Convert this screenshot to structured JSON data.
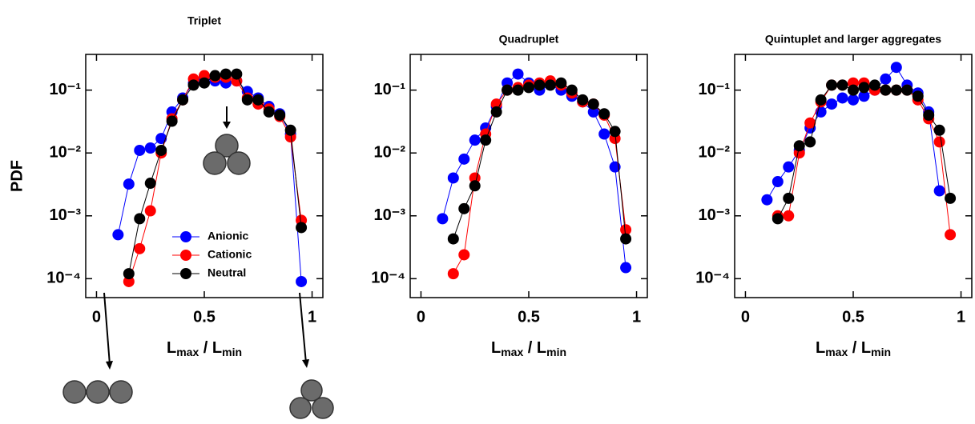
{
  "chart_data": [
    {
      "type": "line",
      "title": "Triplet",
      "ylabel": "PDF",
      "xlabel": [
        "L",
        "max",
        " / ",
        "L",
        "min"
      ],
      "x": [
        0.1,
        0.15,
        0.2,
        0.25,
        0.3,
        0.35,
        0.4,
        0.45,
        0.5,
        0.55,
        0.6,
        0.65,
        0.7,
        0.75,
        0.8,
        0.85,
        0.9,
        0.95
      ],
      "series": [
        {
          "name": "Anionic",
          "color": "#0000ff",
          "values": [
            0.0005,
            0.0032,
            0.011,
            0.012,
            0.017,
            0.045,
            0.075,
            0.13,
            0.16,
            0.14,
            0.13,
            0.14,
            0.095,
            0.075,
            0.055,
            0.042,
            0.02,
            9e-05
          ]
        },
        {
          "name": "Cationic",
          "color": "#ff0000",
          "values": [
            null,
            9e-05,
            0.0003,
            0.0012,
            0.01,
            0.035,
            0.07,
            0.15,
            0.17,
            0.16,
            0.16,
            0.14,
            0.075,
            0.06,
            0.05,
            0.038,
            0.018,
            0.00085
          ]
        },
        {
          "name": "Neutral",
          "color": "#000000",
          "values": [
            null,
            0.00012,
            0.0009,
            0.0033,
            0.011,
            0.032,
            0.07,
            0.12,
            0.13,
            0.17,
            0.18,
            0.18,
            0.07,
            0.07,
            0.045,
            0.04,
            0.023,
            0.00065
          ]
        }
      ],
      "xlim": [
        -0.05,
        1.05
      ],
      "xticks": [
        0,
        0.5,
        1
      ],
      "ylim": [
        5e-05,
        0.37
      ],
      "log_y": true,
      "yticks": [
        {
          "value": 0.1,
          "label": "10⁻¹"
        },
        {
          "value": 0.01,
          "label": "10⁻²"
        },
        {
          "value": 0.001,
          "label": "10⁻³"
        },
        {
          "value": 0.0001,
          "label": "10⁻⁴"
        }
      ],
      "legend": "lower center"
    },
    {
      "type": "line",
      "title": "Quadruplet",
      "xlabel": [
        "L",
        "max",
        " / ",
        "L",
        "min"
      ],
      "x": [
        0.1,
        0.15,
        0.2,
        0.25,
        0.3,
        0.35,
        0.4,
        0.45,
        0.5,
        0.55,
        0.6,
        0.65,
        0.7,
        0.75,
        0.8,
        0.85,
        0.9,
        0.95
      ],
      "series": [
        {
          "name": "Anionic",
          "color": "#0000ff",
          "values": [
            0.0009,
            0.004,
            0.008,
            0.016,
            0.025,
            0.055,
            0.13,
            0.18,
            0.13,
            0.1,
            0.12,
            0.1,
            0.08,
            0.065,
            0.045,
            0.02,
            0.006,
            0.00015
          ]
        },
        {
          "name": "Cationic",
          "color": "#ff0000",
          "values": [
            null,
            0.00012,
            0.00024,
            0.004,
            0.02,
            0.06,
            0.1,
            0.11,
            0.12,
            0.13,
            0.14,
            0.12,
            0.09,
            0.065,
            0.06,
            0.04,
            0.017,
            0.0006
          ]
        },
        {
          "name": "Neutral",
          "color": "#000000",
          "values": [
            null,
            0.00043,
            0.0013,
            0.003,
            0.016,
            0.045,
            0.1,
            0.1,
            0.11,
            0.12,
            0.12,
            0.13,
            0.1,
            0.07,
            0.06,
            0.042,
            0.022,
            0.00043
          ]
        }
      ],
      "xlim": [
        -0.05,
        1.05
      ],
      "xticks": [
        0,
        0.5,
        1
      ],
      "ylim": [
        5e-05,
        0.37
      ],
      "log_y": true,
      "yticks": [
        {
          "value": 0.1,
          "label": "10⁻¹"
        },
        {
          "value": 0.01,
          "label": "10⁻²"
        },
        {
          "value": 0.001,
          "label": "10⁻³"
        },
        {
          "value": 0.0001,
          "label": "10⁻⁴"
        }
      ]
    },
    {
      "type": "line",
      "title": "Quintuplet and larger aggregates",
      "xlabel": [
        "L",
        "max",
        " / ",
        "L",
        "min"
      ],
      "x": [
        0.1,
        0.15,
        0.2,
        0.25,
        0.3,
        0.35,
        0.4,
        0.45,
        0.5,
        0.55,
        0.6,
        0.65,
        0.7,
        0.75,
        0.8,
        0.85,
        0.9,
        0.95
      ],
      "series": [
        {
          "name": "Anionic",
          "color": "#0000ff",
          "values": [
            0.0018,
            0.0035,
            0.006,
            0.011,
            0.025,
            0.045,
            0.06,
            0.075,
            0.07,
            0.08,
            0.1,
            0.15,
            0.23,
            0.12,
            0.09,
            0.045,
            0.0025,
            null
          ]
        },
        {
          "name": "Cationic",
          "color": "#ff0000",
          "values": [
            null,
            0.001,
            0.001,
            0.01,
            0.03,
            0.065,
            0.12,
            0.12,
            0.13,
            0.13,
            0.1,
            0.1,
            0.1,
            0.1,
            0.07,
            0.035,
            0.015,
            0.0005
          ]
        },
        {
          "name": "Neutral",
          "color": "#000000",
          "values": [
            null,
            0.0009,
            0.0019,
            0.013,
            0.015,
            0.07,
            0.12,
            0.12,
            0.1,
            0.11,
            0.12,
            0.1,
            0.1,
            0.1,
            0.08,
            0.04,
            0.023,
            0.0019
          ]
        }
      ],
      "xlim": [
        -0.05,
        1.05
      ],
      "xticks": [
        0,
        0.5,
        1
      ],
      "ylim": [
        5e-05,
        0.37
      ],
      "log_y": true,
      "yticks": [
        {
          "value": 0.1,
          "label": "10⁻¹"
        },
        {
          "value": 0.01,
          "label": "10⁻²"
        },
        {
          "value": 0.001,
          "label": "10⁻³"
        },
        {
          "value": 0.0001,
          "label": "10⁻⁴"
        }
      ]
    }
  ]
}
